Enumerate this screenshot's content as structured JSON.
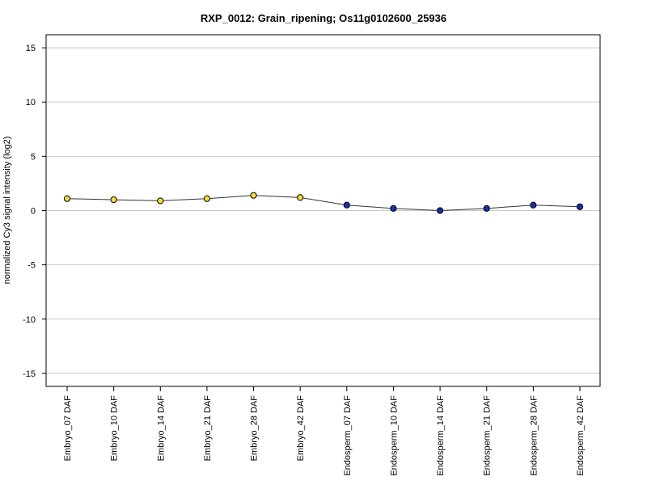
{
  "chart_data": {
    "type": "line",
    "title": "RXP_0012: Grain_ripening; Os11g0102600_25936",
    "xlabel": "",
    "ylabel": "normalized Cy3 signal intensity (log2)",
    "ylim": [
      -16.2,
      16.2
    ],
    "yticks": [
      -15,
      -10,
      -5,
      0,
      5,
      10,
      15
    ],
    "grid": true,
    "categories": [
      "Embryo_07 DAF",
      "Embryo_10 DAF",
      "Embryo_14 DAF",
      "Embryo_21 DAF",
      "Embryo_28 DAF",
      "Embryo_42 DAF",
      "Endosperm_07 DAF",
      "Endosperm_10 DAF",
      "Endosperm_14 DAF",
      "Endosperm_21 DAF",
      "Endosperm_28 DAF",
      "Endosperm_42 DAF"
    ],
    "series": [
      {
        "values": [
          1.1,
          1.0,
          0.9,
          1.1,
          1.4,
          1.2,
          0.5,
          0.2,
          0.0,
          0.2,
          0.5,
          0.35
        ],
        "point_colors": [
          "#f2dc3a",
          "#f2dc3a",
          "#f2dc3a",
          "#f2dc3a",
          "#f2dc3a",
          "#f2dc3a",
          "#1a2fa8",
          "#1a2fa8",
          "#1a2fa8",
          "#1a2fa8",
          "#1a2fa8",
          "#1a2fa8"
        ],
        "line_color": "#333333"
      }
    ],
    "colors": {
      "grid": "#c8c8c8",
      "axis": "#000000",
      "marker_edge": "#000000"
    }
  }
}
